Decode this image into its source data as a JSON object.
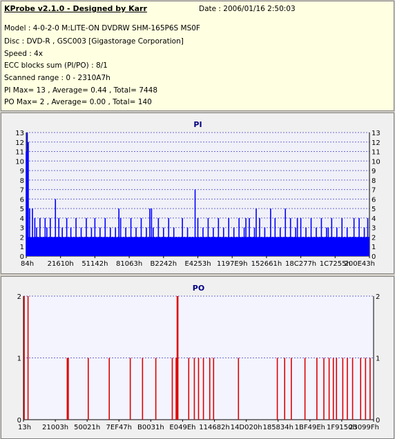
{
  "header": {
    "title": "KProbe v2.1.0 - Designed by Karr",
    "date": "Date : 2006/01/16 2:50:03",
    "lines": [
      "Model : 4-0-2-0 M:LITE-ON DVDRW SHM-165P6S MS0F",
      "Disc : DVD-R , GSC003 [Gigastorage Corporation]",
      "Speed : 4x",
      "ECC blocks sum (PI/PO) : 8/1",
      "Scanned range : 0 - 2310A7h",
      "PI Max= 13 , Average= 0.44 , Total= 7448",
      "PO Max= 2 , Average= 0.00 , Total= 140"
    ]
  },
  "chart_data": [
    {
      "type": "bar",
      "title": "PI",
      "xlabel": "",
      "ylabel": "",
      "ylim": [
        0,
        13
      ],
      "yticks": [
        0,
        1,
        2,
        3,
        4,
        5,
        6,
        7,
        8,
        9,
        10,
        11,
        12,
        13
      ],
      "xticks": [
        "84h",
        "21610h",
        "51142h",
        "81063h",
        "B2242h",
        "E4253h",
        "1197E9h",
        "152661h",
        "18C277h",
        "1C7255h",
        "200E43h"
      ],
      "grid": true,
      "color": "#0000ff",
      "background": "#f0f0f8",
      "baseline_value": 2,
      "spikes": [
        [
          0.0,
          11
        ],
        [
          0.003,
          13
        ],
        [
          0.006,
          12
        ],
        [
          0.01,
          5
        ],
        [
          0.018,
          5
        ],
        [
          0.025,
          4
        ],
        [
          0.03,
          3
        ],
        [
          0.04,
          4
        ],
        [
          0.055,
          4
        ],
        [
          0.06,
          3
        ],
        [
          0.07,
          4
        ],
        [
          0.085,
          6
        ],
        [
          0.095,
          4
        ],
        [
          0.105,
          3
        ],
        [
          0.118,
          4
        ],
        [
          0.13,
          3
        ],
        [
          0.145,
          4
        ],
        [
          0.16,
          3
        ],
        [
          0.175,
          4
        ],
        [
          0.19,
          3
        ],
        [
          0.2,
          4
        ],
        [
          0.215,
          3
        ],
        [
          0.23,
          4
        ],
        [
          0.245,
          3
        ],
        [
          0.26,
          3
        ],
        [
          0.275,
          4
        ],
        [
          0.29,
          3
        ],
        [
          0.305,
          4
        ],
        [
          0.32,
          3
        ],
        [
          0.335,
          4
        ],
        [
          0.35,
          3
        ],
        [
          0.36,
          5
        ],
        [
          0.37,
          3
        ],
        [
          0.385,
          4
        ],
        [
          0.4,
          3
        ],
        [
          0.415,
          4
        ],
        [
          0.43,
          3
        ],
        [
          0.455,
          4
        ],
        [
          0.47,
          3
        ],
        [
          0.492,
          7
        ],
        [
          0.5,
          4
        ],
        [
          0.515,
          3
        ],
        [
          0.53,
          4
        ],
        [
          0.545,
          3
        ],
        [
          0.56,
          4
        ],
        [
          0.575,
          3
        ],
        [
          0.59,
          4
        ],
        [
          0.605,
          3
        ],
        [
          0.62,
          4
        ],
        [
          0.635,
          3
        ],
        [
          0.65,
          4
        ],
        [
          0.665,
          3
        ],
        [
          0.68,
          4
        ],
        [
          0.695,
          3
        ],
        [
          0.712,
          5
        ],
        [
          0.725,
          4
        ],
        [
          0.74,
          3
        ],
        [
          0.755,
          5
        ],
        [
          0.77,
          4
        ],
        [
          0.785,
          3
        ],
        [
          0.8,
          4
        ],
        [
          0.815,
          3
        ],
        [
          0.83,
          4
        ],
        [
          0.845,
          3
        ],
        [
          0.86,
          4
        ],
        [
          0.875,
          3
        ],
        [
          0.89,
          4
        ],
        [
          0.905,
          3
        ],
        [
          0.92,
          4
        ],
        [
          0.935,
          3
        ],
        [
          0.955,
          4
        ],
        [
          0.97,
          4
        ],
        [
          0.985,
          3
        ],
        [
          0.995,
          4
        ],
        [
          0.27,
          5
        ],
        [
          0.365,
          5
        ],
        [
          0.64,
          4
        ],
        [
          0.67,
          5
        ],
        [
          0.79,
          4
        ],
        [
          0.88,
          3
        ]
      ]
    },
    {
      "type": "bar",
      "title": "PO",
      "xlabel": "",
      "ylabel": "",
      "ylim": [
        0,
        2
      ],
      "yticks": [
        0,
        1,
        2
      ],
      "xticks": [
        "13h",
        "21003h",
        "50021h",
        "7EF47h",
        "B0031h",
        "E049Eh",
        "114682h",
        "14D020h",
        "185834h",
        "1BF49Eh",
        "1F9150h",
        "23099Fh"
      ],
      "grid": true,
      "color": "#dd0000",
      "background": "#f4f4ff",
      "spikes": [
        [
          0.002,
          2
        ],
        [
          0.013,
          2
        ],
        [
          0.125,
          1
        ],
        [
          0.128,
          1
        ],
        [
          0.185,
          1
        ],
        [
          0.245,
          1
        ],
        [
          0.305,
          1
        ],
        [
          0.34,
          1
        ],
        [
          0.378,
          1
        ],
        [
          0.425,
          1
        ],
        [
          0.436,
          1
        ],
        [
          0.439,
          2
        ],
        [
          0.441,
          2
        ],
        [
          0.472,
          1
        ],
        [
          0.488,
          1
        ],
        [
          0.5,
          1
        ],
        [
          0.514,
          1
        ],
        [
          0.532,
          1
        ],
        [
          0.543,
          1
        ],
        [
          0.614,
          1
        ],
        [
          0.725,
          1
        ],
        [
          0.746,
          1
        ],
        [
          0.765,
          1
        ],
        [
          0.804,
          1
        ],
        [
          0.838,
          1
        ],
        [
          0.858,
          1
        ],
        [
          0.873,
          1
        ],
        [
          0.885,
          1
        ],
        [
          0.894,
          1
        ],
        [
          0.912,
          1
        ],
        [
          0.925,
          1
        ],
        [
          0.94,
          1
        ],
        [
          0.963,
          1
        ],
        [
          0.977,
          1
        ],
        [
          0.99,
          1
        ]
      ]
    }
  ]
}
